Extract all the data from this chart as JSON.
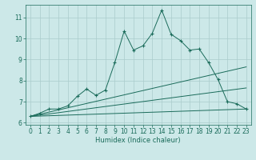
{
  "title": "",
  "xlabel": "Humidex (Indice chaleur)",
  "ylabel": "",
  "background_color": "#cce8e8",
  "grid_color": "#aacccc",
  "line_color": "#1a6b5a",
  "xlim": [
    -0.5,
    23.5
  ],
  "ylim": [
    5.9,
    11.6
  ],
  "xticks": [
    0,
    1,
    2,
    3,
    4,
    5,
    6,
    7,
    8,
    9,
    10,
    11,
    12,
    13,
    14,
    15,
    16,
    17,
    18,
    19,
    20,
    21,
    22,
    23
  ],
  "yticks": [
    6,
    7,
    8,
    9,
    10,
    11
  ],
  "series": [
    {
      "x": [
        0,
        1,
        2,
        3,
        4,
        5,
        6,
        7,
        8,
        9,
        10,
        11,
        12,
        13,
        14,
        15,
        16,
        17,
        18,
        19,
        20,
        21,
        22,
        23
      ],
      "y": [
        6.3,
        6.45,
        6.65,
        6.65,
        6.8,
        7.25,
        7.6,
        7.3,
        7.55,
        8.85,
        10.35,
        9.45,
        9.65,
        10.25,
        11.35,
        10.2,
        9.9,
        9.45,
        9.5,
        8.85,
        8.05,
        7.0,
        6.9,
        6.65
      ],
      "marker": "+"
    },
    {
      "x": [
        0,
        23
      ],
      "y": [
        6.3,
        8.65
      ],
      "marker": null
    },
    {
      "x": [
        0,
        23
      ],
      "y": [
        6.3,
        7.65
      ],
      "marker": null
    },
    {
      "x": [
        0,
        23
      ],
      "y": [
        6.3,
        6.65
      ],
      "marker": null
    }
  ]
}
